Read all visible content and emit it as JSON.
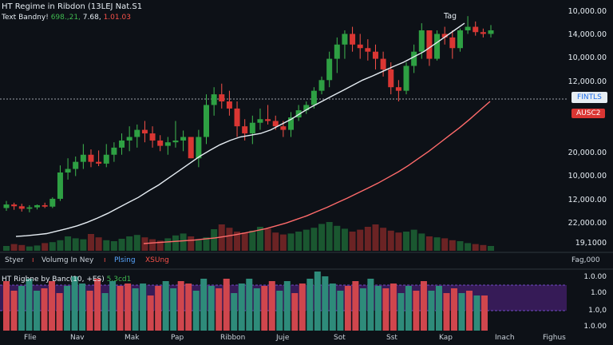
{
  "header": {
    "title": "HT Regime in Ribdon (13LEJ Nat.S1",
    "subtitle_label": "Text Bandny!",
    "subtitle_green": "698.,21,",
    "subtitle_white": "7.68,",
    "subtitle_red": "1.01.03",
    "annotation": "Tag"
  },
  "price_axis": [
    "10,000.00",
    "14,000.00",
    "10,000.00",
    "12,000.00",
    "20,000.00",
    "10,000.00",
    "12,000.00",
    "22,000.00",
    "19,1000"
  ],
  "badges": {
    "primary": "FINTLS",
    "secondary": "AUSC2"
  },
  "legend": {
    "item1": "Styer",
    "item2": "Volumg In Ney",
    "item3": "Plsing",
    "item4": "XSUng",
    "right": "Fag,000"
  },
  "oscillator": {
    "label": "HT Rigbne by Banc(10, +ES)",
    "value": "5.3cd1",
    "axis": [
      "1.0.00",
      "1.00",
      "1.0,0",
      "1.0.00"
    ]
  },
  "x_axis": [
    "Flie",
    "Nav",
    "Mak",
    "Pap",
    "Ribbon",
    "Juje",
    "Sot",
    "Sst",
    "Kap",
    "Inach",
    "Fighus"
  ],
  "colors": {
    "up": "#2ea043",
    "down": "#da3633",
    "ma_white": "#e6edf3",
    "ma_red": "#ff6b6b",
    "band": "#3b1d5e",
    "background": "#0d1117"
  },
  "chart_data": {
    "type": "candlestick",
    "candles": [
      [
        100,
        120,
        92,
        110
      ],
      [
        110,
        115,
        95,
        105
      ],
      [
        105,
        112,
        90,
        98
      ],
      [
        98,
        108,
        88,
        102
      ],
      [
        102,
        110,
        96,
        108
      ],
      [
        108,
        115,
        100,
        104
      ],
      [
        104,
        130,
        100,
        126
      ],
      [
        126,
        220,
        120,
        200
      ],
      [
        200,
        240,
        180,
        210
      ],
      [
        210,
        245,
        190,
        230
      ],
      [
        230,
        280,
        210,
        250
      ],
      [
        250,
        265,
        215,
        230
      ],
      [
        230,
        262,
        218,
        225
      ],
      [
        225,
        280,
        215,
        250
      ],
      [
        250,
        285,
        230,
        270
      ],
      [
        270,
        310,
        250,
        290
      ],
      [
        290,
        330,
        260,
        300
      ],
      [
        300,
        335,
        270,
        320
      ],
      [
        320,
        345,
        285,
        310
      ],
      [
        310,
        330,
        270,
        290
      ],
      [
        290,
        305,
        260,
        275
      ],
      [
        275,
        300,
        250,
        285
      ],
      [
        285,
        345,
        270,
        290
      ],
      [
        290,
        318,
        260,
        300
      ],
      [
        300,
        300,
        240,
        240
      ],
      [
        240,
        320,
        215,
        300
      ],
      [
        300,
        420,
        280,
        390
      ],
      [
        390,
        440,
        360,
        420
      ],
      [
        420,
        450,
        380,
        400
      ],
      [
        400,
        430,
        360,
        380
      ],
      [
        380,
        400,
        300,
        330
      ],
      [
        330,
        350,
        290,
        310
      ],
      [
        310,
        360,
        280,
        340
      ],
      [
        340,
        380,
        320,
        350
      ],
      [
        350,
        390,
        335,
        345
      ],
      [
        345,
        360,
        320,
        330
      ],
      [
        330,
        345,
        300,
        320
      ],
      [
        320,
        370,
        300,
        355
      ],
      [
        355,
        390,
        345,
        375
      ],
      [
        375,
        400,
        365,
        390
      ],
      [
        390,
        440,
        380,
        430
      ],
      [
        430,
        470,
        420,
        460
      ],
      [
        460,
        540,
        440,
        520
      ],
      [
        520,
        580,
        480,
        560
      ],
      [
        560,
        600,
        520,
        590
      ],
      [
        590,
        610,
        540,
        560
      ],
      [
        560,
        590,
        520,
        550
      ],
      [
        550,
        575,
        515,
        540
      ],
      [
        540,
        560,
        490,
        520
      ],
      [
        520,
        540,
        470,
        490
      ],
      [
        490,
        510,
        420,
        440
      ],
      [
        440,
        460,
        400,
        430
      ],
      [
        430,
        510,
        420,
        500
      ],
      [
        500,
        560,
        480,
        540
      ],
      [
        540,
        620,
        520,
        600
      ],
      [
        600,
        600,
        500,
        520
      ],
      [
        520,
        600,
        515,
        590
      ],
      [
        590,
        610,
        560,
        580
      ],
      [
        580,
        600,
        520,
        550
      ],
      [
        550,
        605,
        540,
        600
      ],
      [
        600,
        640,
        590,
        610
      ],
      [
        610,
        625,
        585,
        595
      ],
      [
        595,
        605,
        580,
        590
      ],
      [
        590,
        615,
        580,
        600
      ]
    ],
    "ma_white": [
      20,
      22,
      25,
      28,
      35,
      42,
      50,
      60,
      72,
      85,
      100,
      115,
      130,
      148,
      165,
      185,
      205,
      225,
      245,
      262,
      278,
      290,
      300,
      305,
      310,
      320,
      335,
      350,
      368,
      385,
      400,
      415,
      430,
      445,
      460,
      472,
      485,
      498,
      510,
      525,
      540,
      560,
      580,
      600,
      620
    ],
    "ma_red": [
      0,
      2,
      4,
      6,
      8,
      10,
      13,
      16,
      20,
      25,
      30,
      36,
      42,
      50,
      58,
      68,
      78,
      90,
      102,
      115,
      128,
      142,
      156,
      170,
      186,
      202,
      220,
      240,
      260,
      282,
      304,
      326,
      350,
      375,
      400
    ],
    "volume": [
      10,
      14,
      12,
      9,
      11,
      16,
      18,
      22,
      30,
      26,
      24,
      35,
      28,
      22,
      20,
      25,
      30,
      33,
      28,
      24,
      21,
      26,
      32,
      36,
      30,
      22,
      28,
      45,
      55,
      48,
      40,
      38,
      42,
      50,
      46,
      38,
      34,
      36,
      40,
      44,
      48,
      56,
      60,
      52,
      46,
      40,
      44,
      50,
      55,
      48,
      42,
      38,
      40,
      44,
      36,
      30,
      28,
      26,
      22,
      20,
      16,
      14,
      12,
      10
    ],
    "oscillator": [
      -0.8,
      -0.4,
      0.6,
      0.9,
      0.4,
      -0.5,
      -0.8,
      -0.3,
      0.6,
      1.0,
      0.7,
      -0.4,
      -0.9,
      0.3,
      0.8,
      -0.6,
      -0.7,
      0.5,
      0.7,
      -0.2,
      -0.6,
      0.8,
      0.5,
      -0.8,
      -0.7,
      0.4,
      0.9,
      0.6,
      -0.5,
      -0.9,
      0.3,
      0.7,
      0.9,
      0.5,
      -0.6,
      -0.8,
      0.4,
      0.8,
      -0.3,
      -0.7,
      0.9,
      1.2,
      1.0,
      0.7,
      0.4,
      -0.6,
      -0.8,
      0.5,
      0.9,
      0.6,
      -0.5,
      -0.7,
      0.3,
      0.6,
      -0.4,
      -0.8,
      0.4,
      0.6,
      -0.3,
      -0.5,
      0.3,
      -0.4,
      0.2,
      -0.2
    ],
    "grid": false
  }
}
